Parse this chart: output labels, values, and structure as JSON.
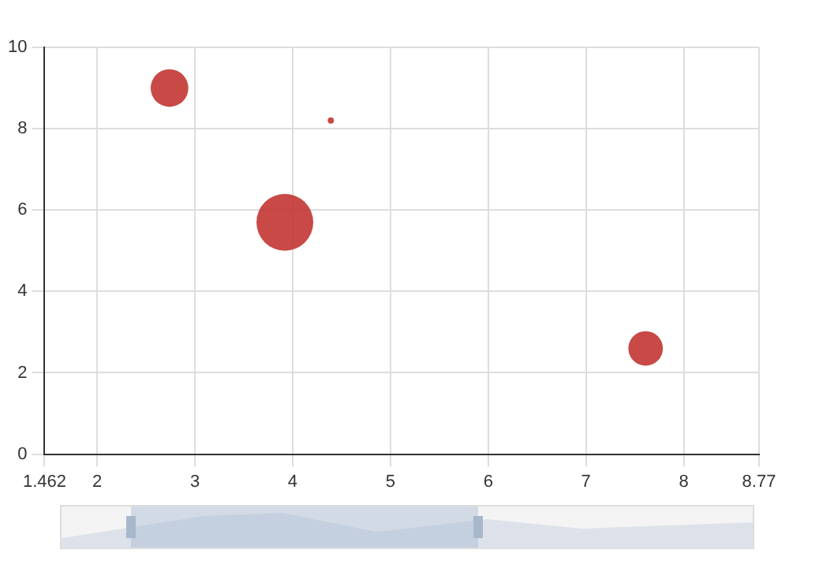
{
  "chart_data": {
    "type": "bubble",
    "series": [
      {
        "color": "#c23531",
        "x": [
          2.74,
          4.39,
          3.92,
          7.61
        ],
        "values": [
          9,
          8.2,
          5.7,
          2.6
        ],
        "sizes": [
          0.44,
          0.012,
          1,
          0.37
        ]
      }
    ],
    "xlim": [
      1.462,
      8.77
    ],
    "xticks": [
      1.462,
      2,
      3,
      4,
      5,
      6,
      7,
      8,
      8.77
    ],
    "ylim": [
      0,
      10
    ],
    "yticks": [
      0,
      2,
      4,
      6,
      8,
      10
    ],
    "grid": true,
    "legend": false
  }
}
